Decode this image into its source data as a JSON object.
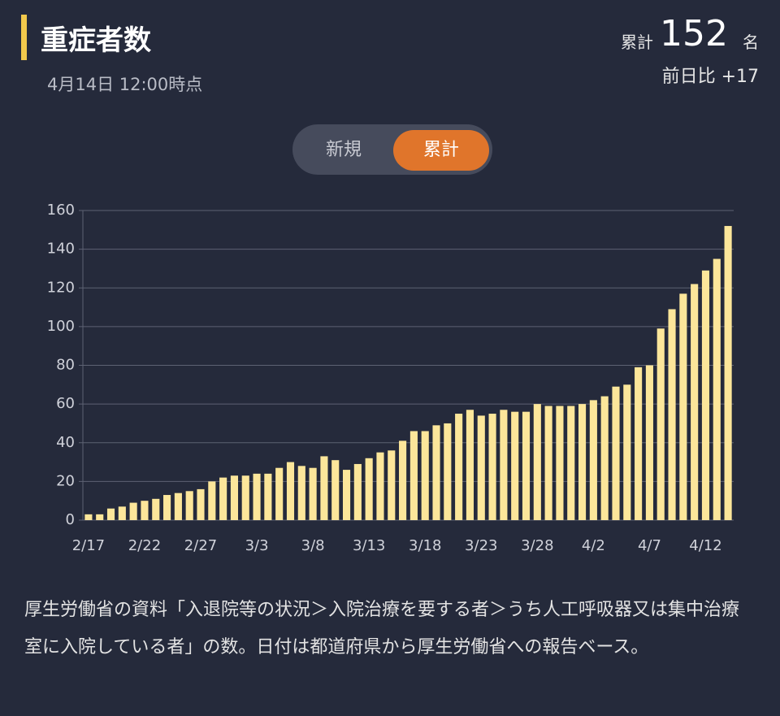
{
  "header": {
    "title": "重症者数",
    "timestamp": "4月14日 12:00時点",
    "total_label": "累計",
    "total_value": "152",
    "total_unit": "名",
    "diff": "前日比 +17"
  },
  "toggle": {
    "options": [
      "新規",
      "累計"
    ]
  },
  "chart_data": {
    "type": "bar",
    "color": "#fce69a",
    "categories": [
      "2/17",
      null,
      null,
      null,
      null,
      "2/22",
      null,
      null,
      null,
      null,
      "2/27",
      null,
      null,
      null,
      null,
      "3/3",
      null,
      null,
      null,
      null,
      "3/8",
      null,
      null,
      null,
      null,
      "3/13",
      null,
      null,
      null,
      null,
      "3/18",
      null,
      null,
      null,
      null,
      "3/23",
      null,
      null,
      null,
      null,
      "3/28",
      null,
      null,
      null,
      null,
      "4/2",
      null,
      null,
      null,
      null,
      "4/7",
      null,
      null,
      null,
      null,
      "4/12",
      null,
      null
    ],
    "values": [
      3,
      3,
      6,
      7,
      9,
      10,
      11,
      13,
      14,
      15,
      16,
      20,
      22,
      23,
      23,
      24,
      24,
      27,
      30,
      28,
      27,
      33,
      31,
      26,
      29,
      32,
      35,
      36,
      41,
      46,
      46,
      49,
      50,
      55,
      57,
      54,
      55,
      57,
      56,
      56,
      60,
      59,
      59,
      59,
      60,
      62,
      64,
      69,
      70,
      79,
      80,
      99,
      109,
      117,
      122,
      129,
      135,
      152
    ],
    "ylim": [
      0,
      160
    ],
    "yticks": [
      0,
      20,
      40,
      60,
      80,
      100,
      120,
      140,
      160
    ],
    "grid": true
  },
  "footnote": "厚生労働省の資料「入退院等の状況＞入院治療を要する者＞うち人工呼吸器又は集中治療室に入院している者」の数。日付は都道府県から厚生労働省への報告ベース。"
}
